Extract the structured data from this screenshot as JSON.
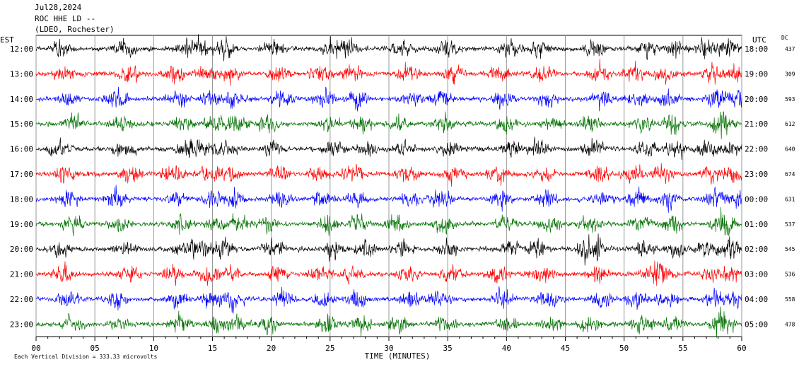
{
  "header": {
    "date": "Jul28,2024",
    "station": "ROC HHE LD --",
    "network": "(LDEO, Rochester)"
  },
  "chart_data": {
    "type": "line",
    "title": "Jul28,2024 ROC HHE LD -- (LDEO, Rochester)",
    "left_axis_label": "EST",
    "right_axis_label": "UTC",
    "dc_label": "DC",
    "xlabel": "TIME (MINUTES)",
    "xlim": [
      0,
      60
    ],
    "x_ticks": [
      "00",
      "05",
      "10",
      "15",
      "20",
      "25",
      "30",
      "35",
      "40",
      "45",
      "50",
      "55",
      "60"
    ],
    "grid_vertical": true,
    "footnote": "Each Vertical Division =  333.33 microvolts",
    "trace_colors": [
      "#000000",
      "#ff0000",
      "#0000ff",
      "#007000"
    ],
    "rows": [
      {
        "est": "12:00",
        "utc": "18:00",
        "dc": "437"
      },
      {
        "est": "13:00",
        "utc": "19:00",
        "dc": "309"
      },
      {
        "est": "14:00",
        "utc": "20:00",
        "dc": "593"
      },
      {
        "est": "15:00",
        "utc": "21:00",
        "dc": "612"
      },
      {
        "est": "16:00",
        "utc": "22:00",
        "dc": "640"
      },
      {
        "est": "17:00",
        "utc": "23:00",
        "dc": "674"
      },
      {
        "est": "18:00",
        "utc": "00:00",
        "dc": "631"
      },
      {
        "est": "19:00",
        "utc": "01:00",
        "dc": "537"
      },
      {
        "est": "20:00",
        "utc": "02:00",
        "dc": "545"
      },
      {
        "est": "21:00",
        "utc": "03:00",
        "dc": "536"
      },
      {
        "est": "22:00",
        "utc": "04:00",
        "dc": "558"
      },
      {
        "est": "23:00",
        "utc": "05:00",
        "dc": "478"
      }
    ]
  }
}
